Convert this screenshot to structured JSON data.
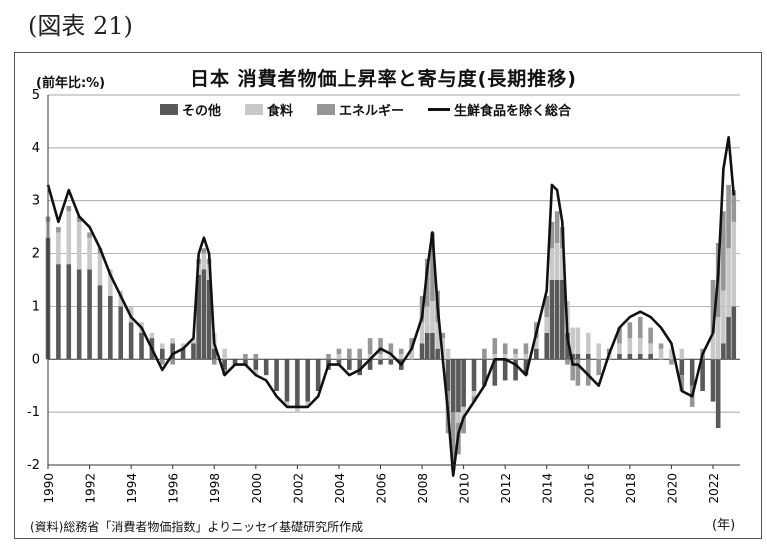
{
  "figure_label": "(図表 21)",
  "chart_data": {
    "type": "bar",
    "stacked": true,
    "title": "日本 消費者物価上昇率と寄与度(長期推移)",
    "ylabel": "(前年比:%)",
    "xlabel": "(年)",
    "ylim": [
      -2,
      5
    ],
    "yticks": [
      "5",
      "4",
      "3",
      "2",
      "1",
      "0",
      "-1",
      "-2"
    ],
    "xticks": [
      "1990",
      "1992",
      "1994",
      "1996",
      "1998",
      "2000",
      "2002",
      "2004",
      "2006",
      "2008",
      "2010",
      "2012",
      "2014",
      "2016",
      "2018",
      "2020",
      "2022"
    ],
    "grid": true,
    "legend_position": "top",
    "x": [
      1990.0,
      1990.5,
      1991.0,
      1991.5,
      1992.0,
      1992.5,
      1993.0,
      1993.5,
      1994.0,
      1994.5,
      1995.0,
      1995.5,
      1996.0,
      1996.5,
      1997.0,
      1997.25,
      1997.5,
      1997.75,
      1998.0,
      1998.5,
      1999.0,
      1999.5,
      2000.0,
      2000.5,
      2001.0,
      2001.5,
      2002.0,
      2002.5,
      2003.0,
      2003.5,
      2004.0,
      2004.5,
      2005.0,
      2005.5,
      2006.0,
      2006.5,
      2007.0,
      2007.5,
      2008.0,
      2008.25,
      2008.5,
      2008.75,
      2009.0,
      2009.25,
      2009.5,
      2009.75,
      2010.0,
      2010.5,
      2011.0,
      2011.5,
      2012.0,
      2012.5,
      2013.0,
      2013.5,
      2014.0,
      2014.25,
      2014.5,
      2014.75,
      2015.0,
      2015.25,
      2015.5,
      2016.0,
      2016.5,
      2017.0,
      2017.5,
      2018.0,
      2018.5,
      2019.0,
      2019.5,
      2020.0,
      2020.5,
      2021.0,
      2021.5,
      2022.0,
      2022.25,
      2022.5,
      2022.75,
      2023.0
    ],
    "series": [
      {
        "name": "その他",
        "color": "#595959",
        "values": [
          2.3,
          1.8,
          1.8,
          1.7,
          1.7,
          1.4,
          1.2,
          1.0,
          0.7,
          0.5,
          0.4,
          0.2,
          0.3,
          0.2,
          0.3,
          1.6,
          1.7,
          1.5,
          0.2,
          -0.2,
          -0.1,
          -0.1,
          -0.2,
          -0.3,
          -0.6,
          -0.8,
          -0.9,
          -0.8,
          -0.6,
          -0.2,
          -0.1,
          -0.2,
          -0.3,
          -0.2,
          -0.1,
          -0.1,
          -0.2,
          0.0,
          0.3,
          0.5,
          0.5,
          0.2,
          0.0,
          -0.6,
          -1.0,
          -1.0,
          -0.9,
          -0.6,
          -0.5,
          -0.5,
          -0.4,
          -0.4,
          -0.3,
          0.2,
          0.5,
          1.5,
          1.5,
          1.5,
          0.5,
          0.1,
          0.1,
          0.1,
          0.0,
          0.0,
          0.1,
          0.1,
          0.1,
          0.1,
          0.0,
          0.0,
          -0.3,
          -0.5,
          -0.6,
          -0.8,
          -1.3,
          0.3,
          0.8,
          1.0
        ]
      },
      {
        "name": "食料",
        "color": "#c8c8c8",
        "values": [
          0.3,
          0.6,
          1.0,
          0.9,
          0.6,
          0.6,
          0.5,
          0.3,
          0.3,
          0.2,
          0.1,
          0.1,
          0.1,
          0.1,
          0.1,
          0.2,
          0.3,
          0.3,
          0.3,
          0.2,
          0.0,
          0.0,
          -0.1,
          0.0,
          0.0,
          -0.1,
          -0.1,
          -0.1,
          0.0,
          0.0,
          0.1,
          0.0,
          0.0,
          0.1,
          0.1,
          0.1,
          0.1,
          0.2,
          0.4,
          0.5,
          0.6,
          0.5,
          0.4,
          0.2,
          0.0,
          -0.2,
          -0.2,
          -0.1,
          0.0,
          0.1,
          0.1,
          0.1,
          0.1,
          0.2,
          0.3,
          0.6,
          0.7,
          0.6,
          0.6,
          0.5,
          0.5,
          0.4,
          0.3,
          0.1,
          0.2,
          0.3,
          0.3,
          0.2,
          0.2,
          0.2,
          0.2,
          0.0,
          0.0,
          0.5,
          0.8,
          1.0,
          1.3,
          1.6
        ]
      },
      {
        "name": "エネルギー",
        "color": "#969696",
        "values": [
          0.1,
          0.1,
          0.1,
          0.1,
          0.1,
          0.1,
          0.0,
          0.0,
          0.0,
          0.0,
          0.0,
          -0.1,
          -0.1,
          0.0,
          0.0,
          0.1,
          0.1,
          0.1,
          -0.1,
          -0.1,
          0.0,
          0.1,
          0.1,
          0.0,
          0.0,
          0.0,
          0.0,
          0.0,
          0.0,
          0.1,
          0.1,
          0.2,
          0.2,
          0.3,
          0.3,
          0.2,
          0.1,
          0.2,
          0.5,
          0.9,
          1.3,
          0.6,
          0.1,
          -0.8,
          -1.1,
          -0.6,
          -0.3,
          -0.1,
          0.2,
          0.3,
          0.2,
          0.1,
          0.2,
          0.3,
          0.4,
          0.5,
          0.6,
          0.4,
          -0.1,
          -0.4,
          -0.5,
          -0.5,
          -0.3,
          0.1,
          0.3,
          0.3,
          0.4,
          0.3,
          0.1,
          -0.1,
          -0.3,
          -0.4,
          0.2,
          1.0,
          1.4,
          1.5,
          1.2,
          0.6
        ]
      },
      {
        "name": "生鮮食品を除く総合",
        "color": "#111111",
        "type": "line",
        "values": [
          3.3,
          2.6,
          3.2,
          2.7,
          2.5,
          2.1,
          1.6,
          1.2,
          0.8,
          0.6,
          0.2,
          -0.2,
          0.1,
          0.2,
          0.4,
          2.0,
          2.3,
          2.0,
          0.3,
          -0.3,
          -0.1,
          -0.1,
          -0.3,
          -0.4,
          -0.7,
          -0.9,
          -0.9,
          -0.9,
          -0.7,
          -0.1,
          -0.1,
          -0.3,
          -0.2,
          0.0,
          0.2,
          0.1,
          -0.1,
          0.2,
          0.8,
          1.7,
          2.4,
          1.0,
          0.0,
          -1.0,
          -2.2,
          -1.4,
          -1.1,
          -0.8,
          -0.5,
          0.0,
          0.0,
          -0.1,
          -0.3,
          0.5,
          1.3,
          3.3,
          3.2,
          2.6,
          0.4,
          -0.1,
          -0.1,
          -0.3,
          -0.5,
          0.1,
          0.6,
          0.8,
          0.9,
          0.8,
          0.6,
          0.3,
          -0.6,
          -0.7,
          0.1,
          0.5,
          1.6,
          3.6,
          4.2,
          3.1
        ]
      }
    ]
  },
  "source_note": "(資料)総務省「消費者物価指数」よりニッセイ基礎研究所作成"
}
